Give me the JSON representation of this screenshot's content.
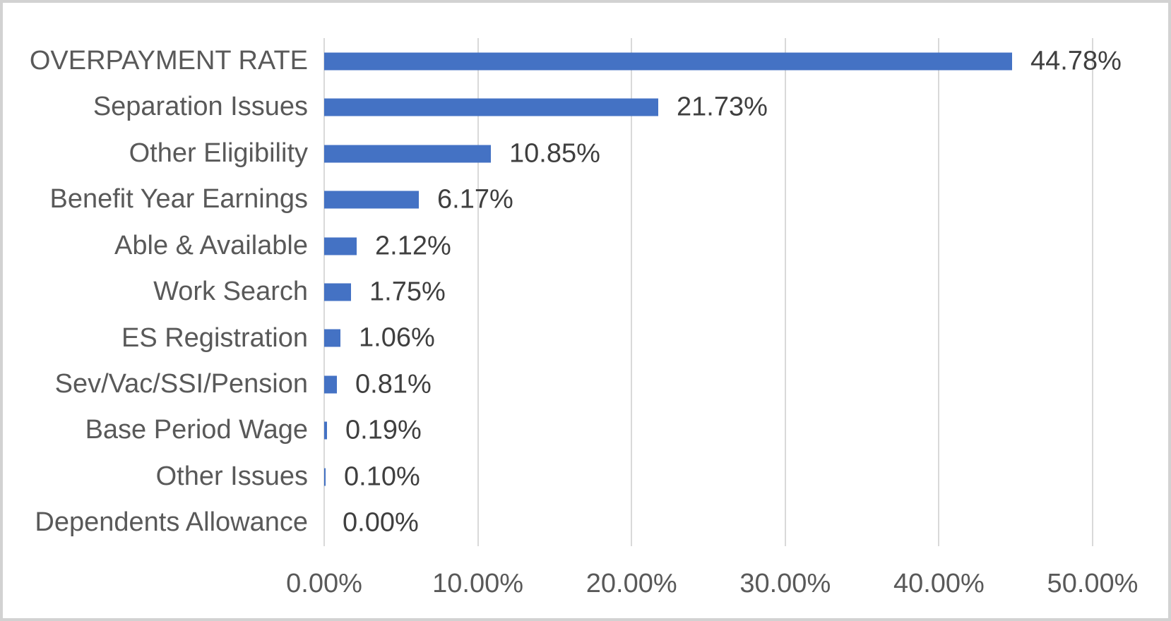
{
  "chart_data": {
    "type": "bar",
    "orientation": "horizontal",
    "title": "",
    "xlabel": "",
    "ylabel": "",
    "xlim": [
      0,
      50
    ],
    "grid": true,
    "legend": false,
    "categories": [
      "OVERPAYMENT RATE",
      "Separation Issues",
      "Other Eligibility",
      "Benefit Year Earnings",
      "Able & Available",
      "Work Search",
      "ES Registration",
      "Sev/Vac/SSI/Pension",
      "Base Period Wage",
      "Other Issues",
      "Dependents Allowance"
    ],
    "values": [
      44.78,
      21.73,
      10.85,
      6.17,
      2.12,
      1.75,
      1.06,
      0.81,
      0.19,
      0.1,
      0.0
    ],
    "value_labels": [
      "44.78%",
      "21.73%",
      "10.85%",
      "6.17%",
      "2.12%",
      "1.75%",
      "1.06%",
      "0.81%",
      "0.19%",
      "0.10%",
      "0.00%"
    ],
    "x_tick_labels": [
      "0.00%",
      "10.00%",
      "20.00%",
      "30.00%",
      "40.00%",
      "50.00%"
    ],
    "x_tick_values": [
      0,
      10,
      20,
      30,
      40,
      50
    ],
    "colors": {
      "bar": "#4472c4",
      "gridline": "#d9d9d9",
      "category_label": "#595959",
      "value_label": "#3f3f3f",
      "tick_label": "#595959",
      "background": "#ffffff",
      "frame_border": "#d2d2d2"
    }
  }
}
